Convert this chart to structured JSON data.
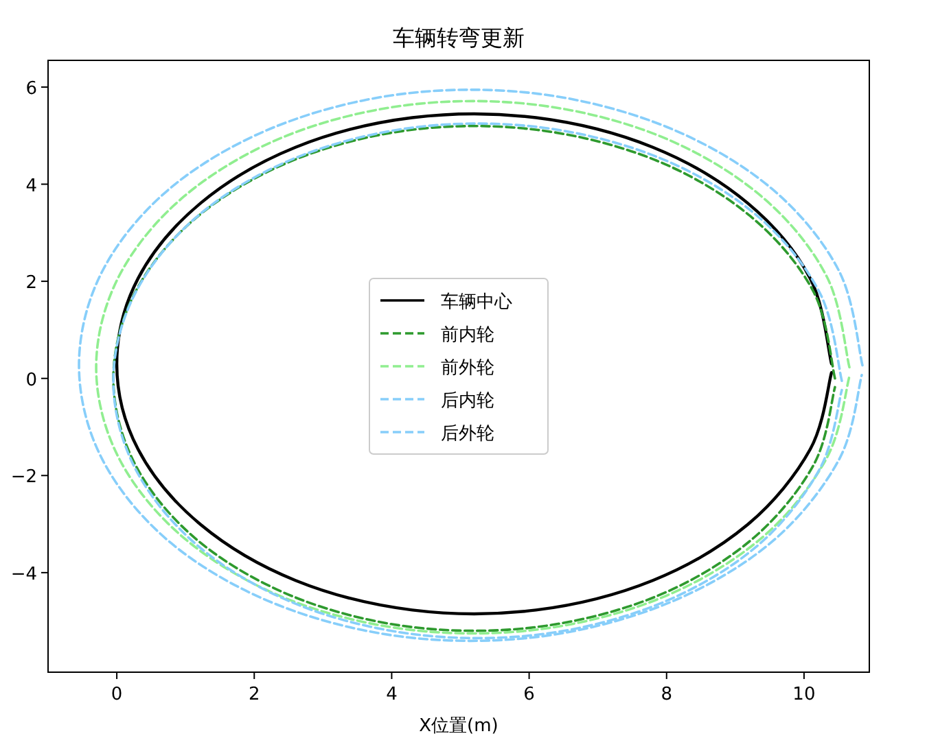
{
  "chart_data": {
    "type": "line",
    "title": "车辆转弯更新",
    "xlabel": "X位置(m)",
    "xlim": [
      -1.0,
      10.95
    ],
    "ylim": [
      -6.05,
      6.55
    ],
    "xticks": [
      0,
      2,
      4,
      6,
      8,
      10
    ],
    "yticks": [
      -4,
      -2,
      0,
      2,
      4,
      6
    ],
    "grid": false,
    "legend": "center",
    "marker": "none",
    "series": [
      {
        "name": "车辆中心",
        "color": "#000000",
        "line_style": "solid",
        "x": [
          10.4,
          10.09,
          9.18,
          7.8,
          6.1,
          4.3,
          2.6,
          1.22,
          0.31,
          0,
          0.31,
          1.22,
          2.6,
          4.3,
          6.1,
          7.8,
          9.18,
          10.09,
          10.4
        ],
        "values": [
          0.3,
          2.06,
          3.61,
          4.76,
          5.37,
          5.37,
          4.76,
          3.61,
          2.06,
          0.3,
          -1.46,
          -3.01,
          -4.16,
          -4.77,
          -4.77,
          -4.16,
          -3.01,
          -1.46,
          0.12
        ]
      },
      {
        "name": "前内轮",
        "color": "#2e9a2e",
        "line_style": "dashed",
        "x": [
          10.45,
          10.14,
          9.22,
          7.83,
          6.11,
          4.29,
          2.58,
          1.18,
          0.27,
          -0.05,
          0.27,
          1.18,
          2.58,
          4.29,
          6.11,
          7.83,
          9.22,
          10.14,
          10.45
        ],
        "values": [
          0,
          1.78,
          3.34,
          4.5,
          5.12,
          5.12,
          4.5,
          3.34,
          1.78,
          0,
          -1.78,
          -3.34,
          -4.5,
          -5.12,
          -5.12,
          -4.5,
          -3.34,
          -1.78,
          -0.18
        ]
      },
      {
        "name": "前外轮",
        "color": "#90ee90",
        "line_style": "dashed",
        "x": [
          10.66,
          10.33,
          9.38,
          7.92,
          6.13,
          4.23,
          2.44,
          0.98,
          0.03,
          -0.3,
          0.03,
          0.98,
          2.44,
          4.23,
          6.13,
          7.92,
          9.38,
          10.33,
          10.66
        ],
        "values": [
          0.23,
          2.1,
          3.75,
          4.98,
          5.63,
          5.63,
          4.98,
          3.75,
          2.1,
          0.23,
          -1.64,
          -3.29,
          -4.52,
          -5.17,
          -5.17,
          -4.52,
          -3.29,
          -1.64,
          0.04
        ]
      },
      {
        "name": "后内轮",
        "color": "#87cefa",
        "line_style": "dashed",
        "x": [
          10.55,
          10.23,
          9.31,
          7.9,
          6.17,
          4.33,
          2.6,
          1.19,
          0.27,
          -0.05,
          0.27,
          1.19,
          2.6,
          4.33,
          6.17,
          7.9,
          9.31,
          10.23,
          10.55
        ],
        "values": [
          -0.05,
          1.76,
          3.36,
          4.54,
          5.17,
          5.17,
          4.54,
          3.36,
          1.76,
          -0.05,
          -1.86,
          -3.46,
          -4.64,
          -5.27,
          -5.27,
          -4.64,
          -3.46,
          -1.86,
          -0.24
        ]
      },
      {
        "name": "后外轮",
        "color": "#87cefa",
        "line_style": "dashed",
        "x": [
          10.85,
          10.51,
          9.52,
          8.0,
          6.14,
          4.16,
          2.3,
          0.78,
          -0.21,
          -0.55,
          -0.21,
          0.78,
          2.3,
          4.16,
          6.14,
          8.0,
          9.52,
          10.51,
          10.84
        ],
        "values": [
          0.27,
          2.21,
          3.92,
          5.18,
          5.86,
          5.86,
          5.18,
          3.92,
          2.21,
          0.27,
          -1.67,
          -3.38,
          -4.64,
          -5.32,
          -5.32,
          -4.64,
          -3.38,
          -1.67,
          0.07
        ]
      }
    ]
  }
}
